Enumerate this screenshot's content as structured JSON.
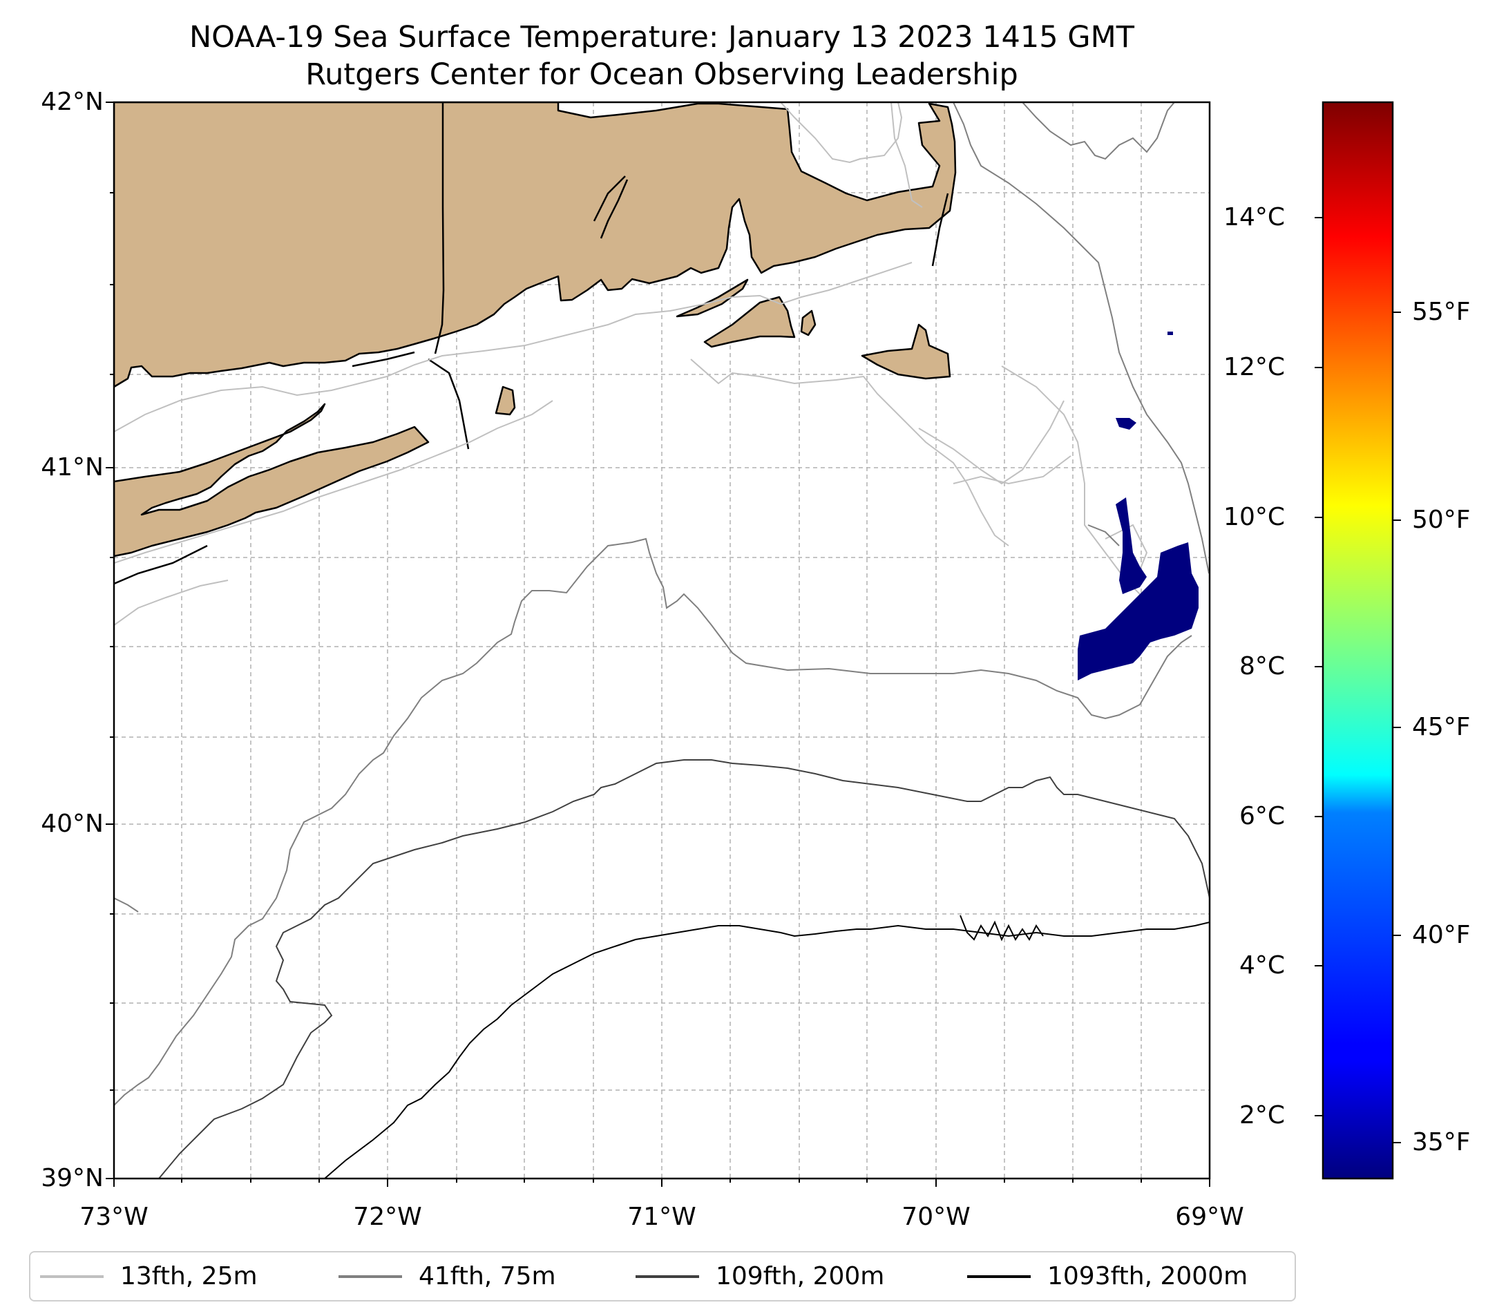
{
  "title": {
    "line1": "NOAA-19 Sea Surface Temperature: January 13 2023 1415 GMT",
    "line2": "Rutgers Center for Ocean Observing Leadership"
  },
  "axes": {
    "lat_labels": [
      "42°N",
      "41°N",
      "40°N",
      "39°N"
    ],
    "lon_labels": [
      "73°W",
      "72°W",
      "71°W",
      "70°W",
      "69°W"
    ]
  },
  "colorbar": {
    "celsius_labels": [
      "14°C",
      "12°C",
      "10°C",
      "8°C",
      "6°C",
      "4°C",
      "2°C"
    ],
    "fahrenheit_labels": [
      "55°F",
      "50°F",
      "45°F",
      "40°F",
      "35°F"
    ]
  },
  "legend": {
    "items": [
      {
        "label": "13fth, 25m",
        "color": "#c0c0c0"
      },
      {
        "label": "41fth, 75m",
        "color": "#808080"
      },
      {
        "label": "109fth, 200m",
        "color": "#404040"
      },
      {
        "label": "1093fth, 2000m",
        "color": "#000000"
      }
    ]
  },
  "colors": {
    "land": "#d2b48c",
    "sst_patch": "#00007f"
  }
}
